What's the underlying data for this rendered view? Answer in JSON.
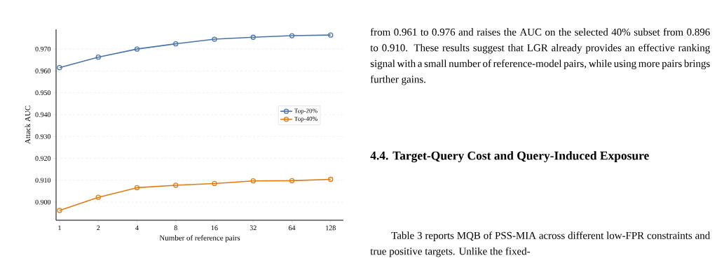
{
  "chart_data": {
    "type": "line",
    "xlabel": "Number of reference pairs",
    "ylabel": "Attack AUC",
    "categories": [
      "1",
      "2",
      "4",
      "8",
      "16",
      "32",
      "64",
      "128"
    ],
    "series": [
      {
        "name": "Top-20%",
        "color": "#4a74a8",
        "values": [
          0.9615,
          0.9663,
          0.97,
          0.9724,
          0.9745,
          0.9754,
          0.9761,
          0.9764
        ]
      },
      {
        "name": "Top-40%",
        "color": "#e07b10",
        "values": [
          0.8962,
          0.9022,
          0.9066,
          0.9077,
          0.9085,
          0.9097,
          0.9098,
          0.9104
        ]
      }
    ],
    "ylim": [
      0.8917,
      0.979
    ],
    "yticks": [
      {
        "value": 0.9,
        "label": "0.900"
      },
      {
        "value": 0.91,
        "label": "0.910"
      },
      {
        "value": 0.92,
        "label": "0.920"
      },
      {
        "value": 0.93,
        "label": "0.930"
      },
      {
        "value": 0.94,
        "label": "0.940"
      },
      {
        "value": 0.95,
        "label": "0.950"
      },
      {
        "value": 0.96,
        "label": "0.960"
      },
      {
        "value": 0.97,
        "label": "0.970"
      }
    ],
    "grid": "y",
    "legend": "right",
    "marker": "circle",
    "line_style": "solid",
    "annotations": [
      "from 0.961 to 0.976 and raises the AUC on the selected 40% subset from 0.896 to 0.910. These results suggest that LGR already provides an effective ranking signal with a small number of reference-model pairs, while using more pairs brings further gains.",
      "4.4. Target-Query Cost and Query-Induced Exposure",
      "Table 3 reports MQB of PSS-MIA across different low-FPR constraints and true positive targets. Unlike the fixed-"
    ]
  }
}
